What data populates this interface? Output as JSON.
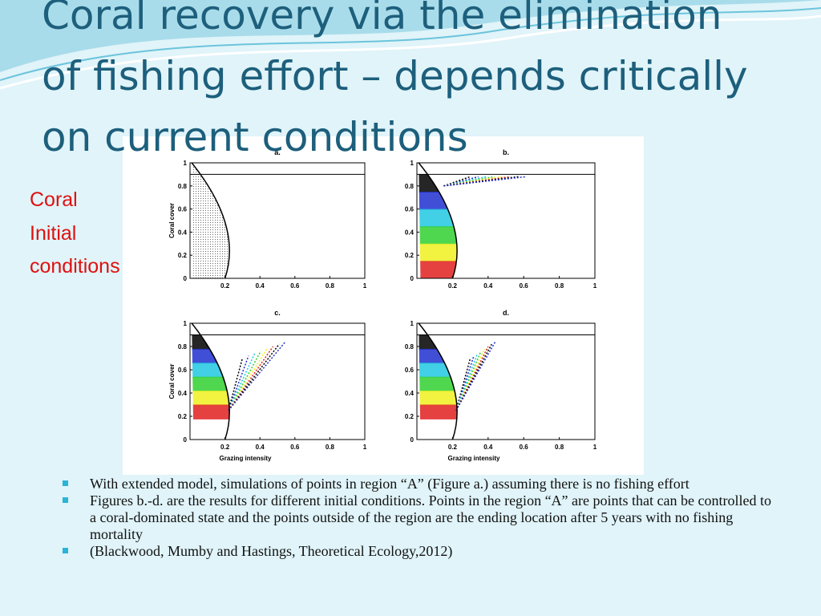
{
  "header": {
    "title_lines": [
      "Coral recovery via the elimination",
      "of fishing effort – depends critically",
      "on current conditions"
    ]
  },
  "side_label_lines": [
    "Coral",
    "Initial",
    "conditions"
  ],
  "figure": {
    "panels": [
      {
        "label": "a."
      },
      {
        "label": "b."
      },
      {
        "label": "c."
      },
      {
        "label": "d."
      }
    ],
    "xticks": [
      0.2,
      0.4,
      0.6,
      0.8,
      1
    ],
    "yticks": [
      0,
      0.2,
      0.4,
      0.6,
      0.8,
      1
    ],
    "xlabel": "Grazing intensity",
    "ylabel": "Coral cover"
  },
  "bullets": [
    "With extended model, simulations of points in region “A” (Figure a.) assuming there is no fishing effort",
    "Figures b.-d. are the results for different initial conditions. Points in the region “A” are points that can be controlled to a coral-dominated state and the points outside of the region are the ending location after 5 years with no fishing mortality",
    "(Blackwood, Mumby and Hastings, Theoretical Ecology,2012)"
  ]
}
